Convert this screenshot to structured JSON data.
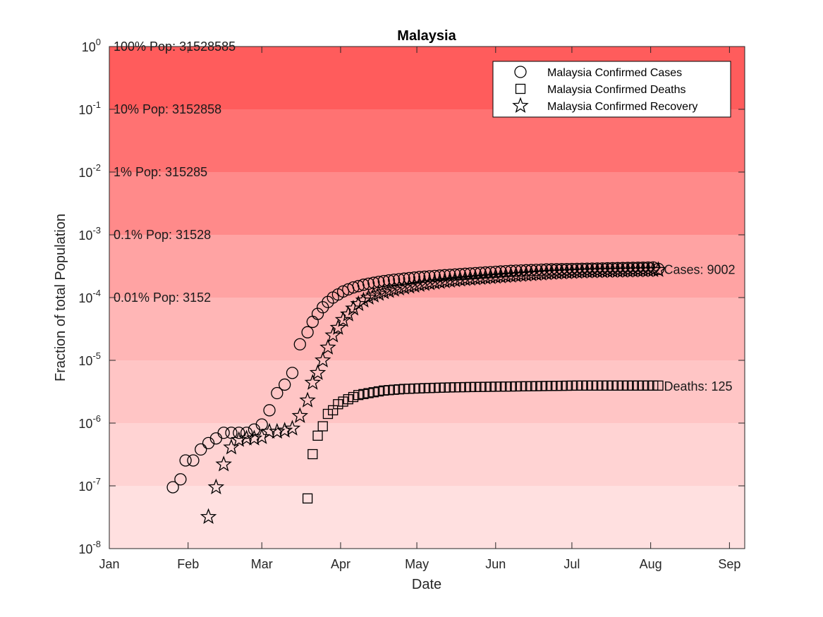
{
  "chart_data": {
    "type": "scatter",
    "title": "Malaysia",
    "xlabel": "Date",
    "ylabel": "Fraction of total Population",
    "y_scale": "log",
    "ylim": [
      1e-08,
      1
    ],
    "xlim": [
      0,
      250
    ],
    "x_unit": "days since 2020-01-01",
    "x_ticks": [
      {
        "value": 0,
        "label": "Jan"
      },
      {
        "value": 31,
        "label": "Feb"
      },
      {
        "value": 60,
        "label": "Mar"
      },
      {
        "value": 91,
        "label": "Apr"
      },
      {
        "value": 121,
        "label": "May"
      },
      {
        "value": 152,
        "label": "Jun"
      },
      {
        "value": 182,
        "label": "Jul"
      },
      {
        "value": 213,
        "label": "Aug"
      },
      {
        "value": 244,
        "label": "Sep"
      }
    ],
    "y_ticks": [
      {
        "value": 1e-08,
        "base": "10",
        "exp": "-8"
      },
      {
        "value": 1e-07,
        "base": "10",
        "exp": "-7"
      },
      {
        "value": 1e-06,
        "base": "10",
        "exp": "-6"
      },
      {
        "value": 1e-05,
        "base": "10",
        "exp": "-5"
      },
      {
        "value": 0.0001,
        "base": "10",
        "exp": "-4"
      },
      {
        "value": 0.001,
        "base": "10",
        "exp": "-3"
      },
      {
        "value": 0.01,
        "base": "10",
        "exp": "-2"
      },
      {
        "value": 0.1,
        "base": "10",
        "exp": "-1"
      },
      {
        "value": 1,
        "base": "10",
        "exp": "0"
      }
    ],
    "bands": [
      {
        "from": 0.1,
        "to": 1,
        "color": "#ff5c5c",
        "label": "100% Pop: 31528585",
        "label_value": 1
      },
      {
        "from": 0.01,
        "to": 0.1,
        "color": "#ff7272",
        "label": "10% Pop: 3152858",
        "label_value": 0.1
      },
      {
        "from": 0.001,
        "to": 0.01,
        "color": "#ff8a8a",
        "label": "1% Pop: 315285",
        "label_value": 0.01
      },
      {
        "from": 0.0001,
        "to": 0.001,
        "color": "#ffa3a3",
        "label": "0.1% Pop: 31528",
        "label_value": 0.001
      },
      {
        "from": 1e-05,
        "to": 0.0001,
        "color": "#ffb6b6",
        "label": "0.01% Pop: 3152",
        "label_value": 0.0001
      },
      {
        "from": 1e-06,
        "to": 1e-05,
        "color": "#ffc5c5",
        "label": "",
        "label_value": null
      },
      {
        "from": 1e-07,
        "to": 1e-06,
        "color": "#ffd3d3",
        "label": "",
        "label_value": null
      },
      {
        "from": 1e-08,
        "to": 1e-07,
        "color": "#ffe0e0",
        "label": "",
        "label_value": null
      }
    ],
    "series": [
      {
        "name": "Malaysia Confirmed Cases",
        "marker": "circle",
        "end_label": "Cases: 9002",
        "x": [
          25,
          28,
          30,
          33,
          36,
          39,
          42,
          45,
          48,
          51,
          54,
          57,
          60,
          63,
          66,
          69,
          72,
          75,
          78,
          80,
          82,
          84,
          86,
          88,
          90,
          92,
          94,
          96,
          98,
          100,
          102,
          104,
          106,
          108,
          110,
          112,
          114,
          116,
          118,
          120,
          122,
          124,
          126,
          128,
          130,
          132,
          134,
          136,
          138,
          140,
          142,
          144,
          146,
          148,
          150,
          152,
          154,
          156,
          158,
          160,
          162,
          164,
          166,
          168,
          170,
          172,
          174,
          176,
          178,
          180,
          182,
          184,
          186,
          188,
          190,
          192,
          194,
          196,
          198,
          200,
          202,
          204,
          206,
          208,
          210,
          212,
          214,
          216
        ],
        "y": [
          9.5e-08,
          1.27e-07,
          2.54e-07,
          2.54e-07,
          3.8e-07,
          4.8e-07,
          5.7e-07,
          7e-07,
          7e-07,
          7e-07,
          7e-07,
          7.9e-07,
          9.5e-07,
          1.6e-06,
          3e-06,
          4.1e-06,
          6.3e-06,
          1.8e-05,
          2.8e-05,
          4.1e-05,
          5.5e-05,
          7e-05,
          8.5e-05,
          0.0001,
          0.000112,
          0.000125,
          0.000135,
          0.000145,
          0.000152,
          0.00016,
          0.000166,
          0.000172,
          0.000178,
          0.000183,
          0.000188,
          0.000192,
          0.000196,
          0.0002,
          0.000204,
          0.000208,
          0.000212,
          0.000215,
          0.000218,
          0.000221,
          0.000224,
          0.000227,
          0.00023,
          0.000233,
          0.000236,
          0.000239,
          0.000242,
          0.000245,
          0.000248,
          0.000251,
          0.000254,
          0.000257,
          0.00026,
          0.000263,
          0.000266,
          0.000268,
          0.00027,
          0.000272,
          0.000274,
          0.000276,
          0.000278,
          0.00028,
          0.000281,
          0.000282,
          0.000283,
          0.000284,
          0.000285,
          0.000286,
          0.000287,
          0.000288,
          0.000289,
          0.00029,
          0.000291,
          0.000292,
          0.000293,
          0.000294,
          0.000295,
          0.000296,
          0.000297,
          0.000298,
          0.000299,
          0.0003,
          0.000301,
          0.000286
        ]
      },
      {
        "name": "Malaysia Confirmed Deaths",
        "marker": "square",
        "end_label": "Deaths: 125",
        "x": [
          78,
          80,
          82,
          84,
          86,
          88,
          90,
          92,
          94,
          96,
          98,
          100,
          102,
          104,
          106,
          108,
          110,
          112,
          114,
          116,
          118,
          120,
          122,
          124,
          126,
          128,
          130,
          132,
          134,
          136,
          138,
          140,
          142,
          144,
          146,
          148,
          150,
          152,
          154,
          156,
          158,
          160,
          162,
          164,
          166,
          168,
          170,
          172,
          174,
          176,
          178,
          180,
          182,
          184,
          186,
          188,
          190,
          192,
          194,
          196,
          198,
          200,
          202,
          204,
          206,
          208,
          210,
          212,
          214,
          216
        ],
        "y": [
          6.3e-08,
          3.2e-07,
          6.3e-07,
          8.9e-07,
          1.4e-06,
          1.6e-06,
          2e-06,
          2.2e-06,
          2.4e-06,
          2.6e-06,
          2.8e-06,
          2.9e-06,
          3e-06,
          3.1e-06,
          3.2e-06,
          3.3e-06,
          3.35e-06,
          3.4e-06,
          3.45e-06,
          3.5e-06,
          3.52e-06,
          3.55e-06,
          3.57e-06,
          3.6e-06,
          3.62e-06,
          3.64e-06,
          3.66e-06,
          3.68e-06,
          3.7e-06,
          3.72e-06,
          3.73e-06,
          3.74e-06,
          3.75e-06,
          3.76e-06,
          3.77e-06,
          3.78e-06,
          3.79e-06,
          3.8e-06,
          3.81e-06,
          3.82e-06,
          3.83e-06,
          3.84e-06,
          3.85e-06,
          3.86e-06,
          3.87e-06,
          3.88e-06,
          3.89e-06,
          3.9e-06,
          3.91e-06,
          3.92e-06,
          3.93e-06,
          3.94e-06,
          3.95e-06,
          3.96e-06,
          3.96e-06,
          3.96e-06,
          3.96e-06,
          3.96e-06,
          3.96e-06,
          3.96e-06,
          3.96e-06,
          3.96e-06,
          3.96e-06,
          3.96e-06,
          3.96e-06,
          3.96e-06,
          3.96e-06,
          3.96e-06,
          3.96e-06,
          3.96e-06
        ]
      },
      {
        "name": "Malaysia Confirmed Recovery",
        "marker": "star",
        "end_label": "",
        "x": [
          39,
          42,
          45,
          48,
          51,
          54,
          57,
          60,
          63,
          66,
          69,
          72,
          75,
          78,
          80,
          82,
          84,
          86,
          88,
          90,
          92,
          94,
          96,
          98,
          100,
          102,
          104,
          106,
          108,
          110,
          112,
          114,
          116,
          118,
          120,
          122,
          124,
          126,
          128,
          130,
          132,
          134,
          136,
          138,
          140,
          142,
          144,
          146,
          148,
          150,
          152,
          154,
          156,
          158,
          160,
          162,
          164,
          166,
          168,
          170,
          172,
          174,
          176,
          178,
          180,
          182,
          184,
          186,
          188,
          190,
          192,
          194,
          196,
          198,
          200,
          202,
          204,
          206,
          208,
          210,
          212,
          214,
          216
        ],
        "y": [
          3.2e-08,
          9.5e-08,
          2.2e-07,
          4.1e-07,
          5.4e-07,
          5.7e-07,
          5.7e-07,
          6e-07,
          7.3e-07,
          7.3e-07,
          7.6e-07,
          8.2e-07,
          1.3e-06,
          2.3e-06,
          4.4e-06,
          6.3e-06,
          1e-05,
          1.6e-05,
          2.5e-05,
          3.3e-05,
          4.4e-05,
          5.4e-05,
          6.7e-05,
          7.9e-05,
          9e-05,
          0.0001,
          0.000108,
          0.000115,
          0.000122,
          0.000128,
          0.000134,
          0.00014,
          0.000145,
          0.00015,
          0.000155,
          0.00016,
          0.000165,
          0.00017,
          0.000174,
          0.000178,
          0.000182,
          0.000186,
          0.00019,
          0.000194,
          0.000197,
          0.0002,
          0.000203,
          0.000206,
          0.000209,
          0.000212,
          0.000215,
          0.000218,
          0.000221,
          0.000224,
          0.000227,
          0.00023,
          0.000233,
          0.000236,
          0.000239,
          0.000242,
          0.000245,
          0.000248,
          0.00025,
          0.000252,
          0.000254,
          0.000256,
          0.000258,
          0.00026,
          0.000262,
          0.000263,
          0.000264,
          0.000265,
          0.000266,
          0.000267,
          0.000268,
          0.000269,
          0.00027,
          0.000271,
          0.000272,
          0.000273,
          0.000274,
          0.000275,
          0.000276
        ]
      }
    ],
    "legend": {
      "placement": "top-right",
      "entries": [
        {
          "label": "Malaysia Confirmed Cases",
          "marker": "circle"
        },
        {
          "label": "Malaysia Confirmed Deaths",
          "marker": "square"
        },
        {
          "label": "Malaysia Confirmed Recovery",
          "marker": "star"
        }
      ]
    },
    "grid": false
  }
}
